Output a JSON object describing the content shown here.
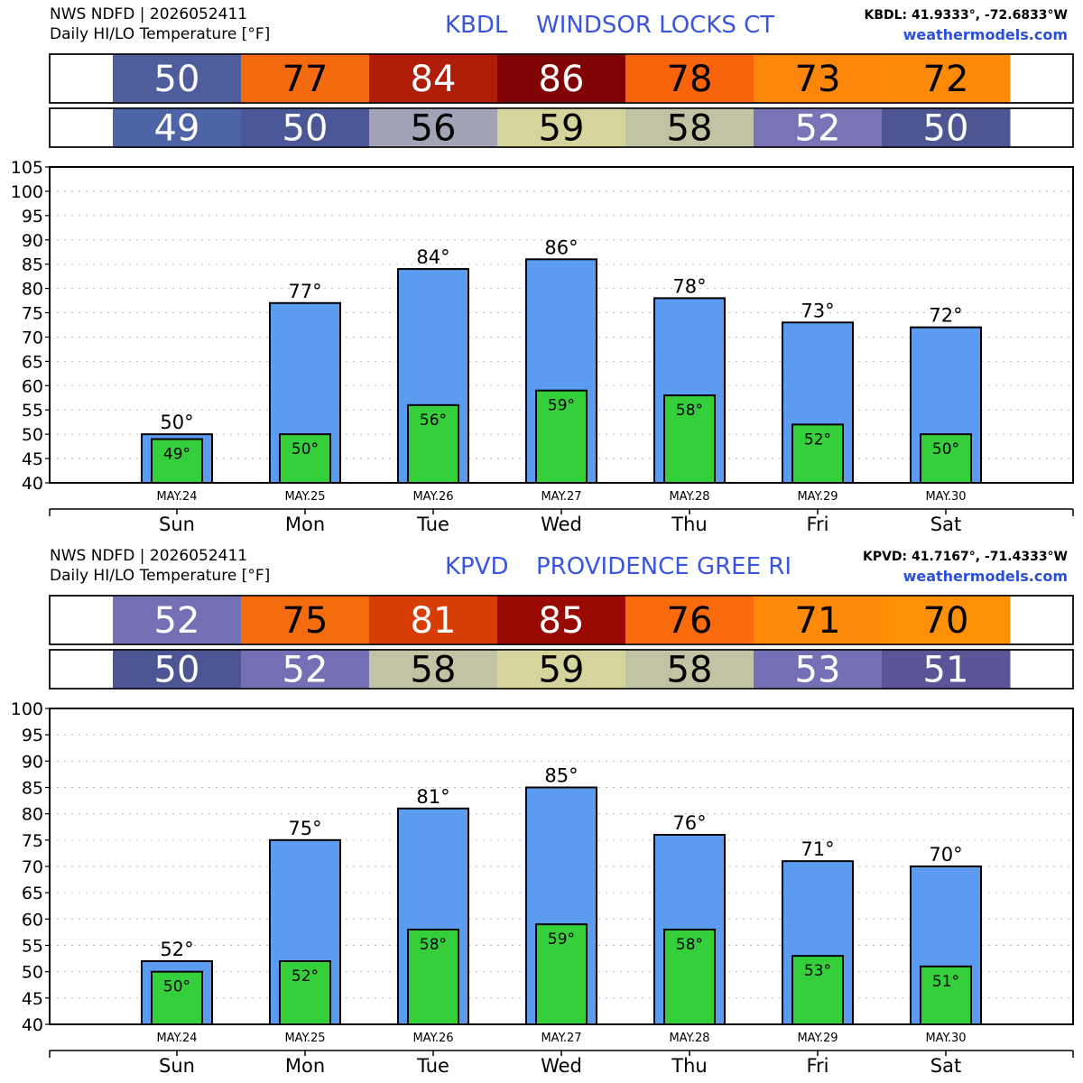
{
  "panels": [
    {
      "header": {
        "source": "NWS NDFD | 2026052411",
        "subtitle": "Daily HI/LO Temperature [°F]",
        "station": "KBDL",
        "location": "WINDSOR LOCKS   CT",
        "coords": "KBDL: 41.9333°, -72.6833°W",
        "website": "weathermodels.com"
      },
      "hi_colors": [
        "#4e5e9c",
        "#f56a0e",
        "#b01d08",
        "#800404",
        "#f7640c",
        "#fc8609",
        "#fc8a07"
      ],
      "lo_colors": [
        "#4d65a7",
        "#4b5797",
        "#a3a3b8",
        "#d6d49d",
        "#c2c2a4",
        "#7874b6",
        "#4d5592"
      ],
      "chart_data": {
        "type": "bar",
        "categories": [
          "Sun",
          "Mon",
          "Tue",
          "Wed",
          "Thu",
          "Fri",
          "Sat"
        ],
        "dates": [
          "MAY.24",
          "MAY.25",
          "MAY.26",
          "MAY.27",
          "MAY.28",
          "MAY.29",
          "MAY.30"
        ],
        "series": [
          {
            "values": [
              50,
              77,
              84,
              86,
              78,
              73,
              72
            ]
          },
          {
            "values": [
              49,
              50,
              56,
              59,
              58,
              52,
              50
            ]
          }
        ],
        "ylim": [
          40,
          105
        ],
        "ytick_step": 5,
        "grid": true,
        "bar_colors": {
          "hi": "#5b9cf1",
          "lo": "#36cf3c"
        }
      }
    },
    {
      "header": {
        "source": "NWS NDFD | 2026052411",
        "subtitle": "Daily HI/LO Temperature [°F]",
        "station": "KPVD",
        "location": "PROVIDENCE GREE RI",
        "coords": "KPVD: 41.7167°, -71.4333°W",
        "website": "weathermodels.com"
      },
      "hi_colors": [
        "#7470b5",
        "#f56c0f",
        "#d73e06",
        "#9a0a04",
        "#f96b0c",
        "#fd8a08",
        "#fd9006"
      ],
      "lo_colors": [
        "#4d5592",
        "#7470b5",
        "#c2c2a4",
        "#d6d49d",
        "#c2c2a4",
        "#7470b5",
        "#5a5596"
      ],
      "chart_data": {
        "type": "bar",
        "categories": [
          "Sun",
          "Mon",
          "Tue",
          "Wed",
          "Thu",
          "Fri",
          "Sat"
        ],
        "dates": [
          "MAY.24",
          "MAY.25",
          "MAY.26",
          "MAY.27",
          "MAY.28",
          "MAY.29",
          "MAY.30"
        ],
        "series": [
          {
            "values": [
              52,
              75,
              81,
              85,
              76,
              71,
              70
            ]
          },
          {
            "values": [
              50,
              52,
              58,
              59,
              58,
              53,
              51
            ]
          }
        ],
        "ylim": [
          40,
          100
        ],
        "ytick_step": 5,
        "grid": true,
        "bar_colors": {
          "hi": "#5b9cf1",
          "lo": "#36cf3c"
        }
      }
    }
  ]
}
